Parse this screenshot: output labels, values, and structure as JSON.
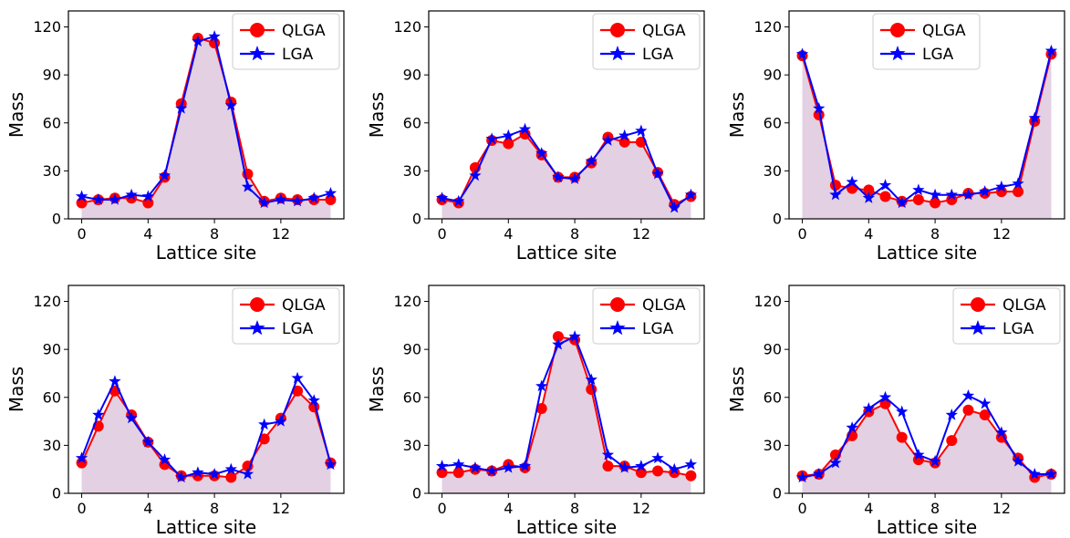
{
  "chart_data": [
    {
      "type": "line",
      "xlabel": "Lattice site",
      "ylabel": "Mass",
      "xlim": [
        -0.8,
        15.8
      ],
      "ylim": [
        0,
        130
      ],
      "xticks": [
        0,
        4,
        8,
        12
      ],
      "yticks": [
        0,
        30,
        60,
        90,
        120
      ],
      "legend_position": "top-right",
      "x": [
        0,
        1,
        2,
        3,
        4,
        5,
        6,
        7,
        8,
        9,
        10,
        11,
        12,
        13,
        14,
        15
      ],
      "series": [
        {
          "name": "QLGA",
          "color": "#ff0000",
          "marker": "circle",
          "values": [
            10,
            12,
            13,
            13,
            10,
            26,
            72,
            113,
            110,
            73,
            28,
            11,
            13,
            12,
            12,
            12
          ]
        },
        {
          "name": "LGA",
          "color": "#0000ff",
          "marker": "star",
          "values": [
            14,
            12,
            12,
            15,
            14,
            27,
            69,
            111,
            114,
            71,
            20,
            10,
            12,
            11,
            13,
            16
          ]
        }
      ]
    },
    {
      "type": "line",
      "xlabel": "Lattice site",
      "ylabel": "Mass",
      "xlim": [
        -0.8,
        15.8
      ],
      "ylim": [
        0,
        130
      ],
      "xticks": [
        0,
        4,
        8,
        12
      ],
      "yticks": [
        0,
        30,
        60,
        90,
        120
      ],
      "legend_position": "top-right",
      "x": [
        0,
        1,
        2,
        3,
        4,
        5,
        6,
        7,
        8,
        9,
        10,
        11,
        12,
        13,
        14,
        15
      ],
      "series": [
        {
          "name": "QLGA",
          "color": "#ff0000",
          "marker": "circle",
          "values": [
            12,
            10,
            32,
            49,
            47,
            53,
            40,
            26,
            26,
            35,
            51,
            48,
            48,
            29,
            9,
            14
          ]
        },
        {
          "name": "LGA",
          "color": "#0000ff",
          "marker": "star",
          "values": [
            13,
            11,
            27,
            50,
            52,
            56,
            41,
            26,
            25,
            36,
            49,
            52,
            55,
            28,
            7,
            15
          ]
        }
      ]
    },
    {
      "type": "line",
      "xlabel": "Lattice site",
      "ylabel": "Mass",
      "xlim": [
        -0.8,
        15.8
      ],
      "ylim": [
        0,
        130
      ],
      "xticks": [
        0,
        4,
        8,
        12
      ],
      "yticks": [
        0,
        30,
        60,
        90,
        120
      ],
      "legend_position": "top-center",
      "x": [
        0,
        1,
        2,
        3,
        4,
        5,
        6,
        7,
        8,
        9,
        10,
        11,
        12,
        13,
        14,
        15
      ],
      "series": [
        {
          "name": "QLGA",
          "color": "#ff0000",
          "marker": "circle",
          "values": [
            102,
            65,
            21,
            19,
            18,
            14,
            11,
            12,
            10,
            12,
            16,
            16,
            17,
            17,
            61,
            103
          ]
        },
        {
          "name": "LGA",
          "color": "#0000ff",
          "marker": "star",
          "values": [
            103,
            69,
            15,
            23,
            13,
            21,
            10,
            18,
            15,
            15,
            15,
            17,
            20,
            22,
            63,
            105
          ]
        }
      ]
    },
    {
      "type": "line",
      "xlabel": "Lattice site",
      "ylabel": "Mass",
      "xlim": [
        -0.8,
        15.8
      ],
      "ylim": [
        0,
        130
      ],
      "xticks": [
        0,
        4,
        8,
        12
      ],
      "yticks": [
        0,
        30,
        60,
        90,
        120
      ],
      "legend_position": "top-right",
      "x": [
        0,
        1,
        2,
        3,
        4,
        5,
        6,
        7,
        8,
        9,
        10,
        11,
        12,
        13,
        14,
        15
      ],
      "series": [
        {
          "name": "QLGA",
          "color": "#ff0000",
          "marker": "circle",
          "values": [
            19,
            42,
            64,
            49,
            32,
            18,
            11,
            11,
            11,
            10,
            17,
            34,
            47,
            64,
            54,
            19
          ]
        },
        {
          "name": "LGA",
          "color": "#0000ff",
          "marker": "star",
          "values": [
            22,
            49,
            70,
            47,
            32,
            21,
            10,
            13,
            12,
            15,
            12,
            43,
            45,
            72,
            58,
            18
          ]
        }
      ]
    },
    {
      "type": "line",
      "xlabel": "Lattice site",
      "ylabel": "Mass",
      "xlim": [
        -0.8,
        15.8
      ],
      "ylim": [
        0,
        130
      ],
      "xticks": [
        0,
        4,
        8,
        12
      ],
      "yticks": [
        0,
        30,
        60,
        90,
        120
      ],
      "legend_position": "top-right",
      "x": [
        0,
        1,
        2,
        3,
        4,
        5,
        6,
        7,
        8,
        9,
        10,
        11,
        12,
        13,
        14,
        15
      ],
      "series": [
        {
          "name": "QLGA",
          "color": "#ff0000",
          "marker": "circle",
          "values": [
            13,
            13,
            15,
            14,
            18,
            16,
            53,
            98,
            96,
            65,
            17,
            17,
            13,
            14,
            13,
            11
          ]
        },
        {
          "name": "LGA",
          "color": "#0000ff",
          "marker": "star",
          "values": [
            17,
            18,
            16,
            14,
            16,
            17,
            67,
            93,
            98,
            71,
            24,
            16,
            17,
            22,
            15,
            18
          ]
        }
      ]
    },
    {
      "type": "line",
      "xlabel": "Lattice site",
      "ylabel": "Mass",
      "xlim": [
        -0.8,
        15.8
      ],
      "ylim": [
        0,
        130
      ],
      "xticks": [
        0,
        4,
        8,
        12
      ],
      "yticks": [
        0,
        30,
        60,
        90,
        120
      ],
      "legend_position": "top-right",
      "x": [
        0,
        1,
        2,
        3,
        4,
        5,
        6,
        7,
        8,
        9,
        10,
        11,
        12,
        13,
        14,
        15
      ],
      "series": [
        {
          "name": "QLGA",
          "color": "#ff0000",
          "marker": "circle",
          "values": [
            11,
            12,
            24,
            36,
            51,
            56,
            35,
            21,
            19,
            33,
            52,
            49,
            35,
            22,
            10,
            12
          ]
        },
        {
          "name": "LGA",
          "color": "#0000ff",
          "marker": "star",
          "values": [
            10,
            12,
            19,
            41,
            53,
            60,
            51,
            24,
            20,
            49,
            61,
            56,
            38,
            20,
            12,
            12
          ]
        }
      ]
    }
  ],
  "style": {
    "fill_color": "#c8a2c8",
    "fill_opacity": 0.5
  }
}
